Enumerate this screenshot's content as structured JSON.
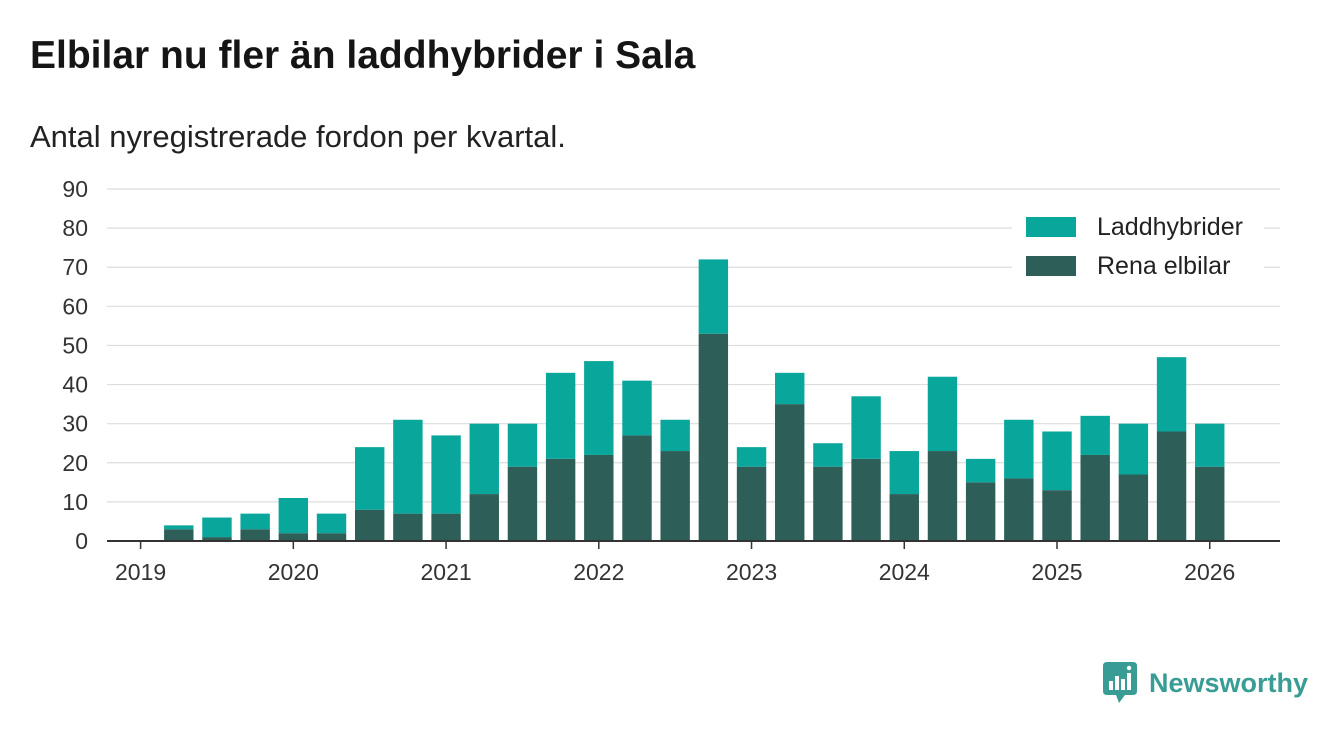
{
  "chart_data": {
    "type": "bar",
    "stacked": true,
    "title": "Elbilar nu fler än laddhybrider i Sala",
    "subtitle": "Antal nyregistrerade fordon per kvartal.",
    "x": [
      2019.25,
      2019.5,
      2019.75,
      2020,
      2020.25,
      2020.5,
      2020.75,
      2021,
      2021.25,
      2021.5,
      2021.75,
      2022,
      2022.25,
      2022.5,
      2022.75,
      2023,
      2023.25,
      2023.5,
      2023.75,
      2024,
      2024.25,
      2024.5,
      2024.75,
      2025,
      2025.25,
      2025.5,
      2025.75,
      2026
    ],
    "xlim": [
      2018.78,
      2026.46
    ],
    "x_ticks": [
      2019,
      2020,
      2021,
      2022,
      2023,
      2024,
      2025,
      2026
    ],
    "ylim": [
      0,
      90
    ],
    "y_ticks": [
      0,
      10,
      20,
      30,
      40,
      50,
      60,
      70,
      80,
      90
    ],
    "grid": true,
    "legend_position": "top-right",
    "series": [
      {
        "name": "Laddhybrider",
        "color": "#09a69b",
        "values": [
          1,
          5,
          4,
          9,
          5,
          16,
          24,
          20,
          18,
          11,
          22,
          24,
          14,
          8,
          19,
          5,
          8,
          6,
          16,
          11,
          19,
          6,
          15,
          15,
          10,
          13,
          19,
          11
        ]
      },
      {
        "name": "Rena elbilar",
        "color": "#2e5e58",
        "values": [
          3,
          1,
          3,
          2,
          2,
          8,
          7,
          7,
          12,
          19,
          21,
          22,
          27,
          23,
          53,
          19,
          35,
          19,
          21,
          12,
          23,
          15,
          16,
          13,
          22,
          17,
          28,
          19
        ]
      }
    ]
  },
  "branding": {
    "logo_text": "Newsworthy",
    "logo_icon": "newsworthy-logo-icon",
    "accent_color": "#3a9d95"
  }
}
